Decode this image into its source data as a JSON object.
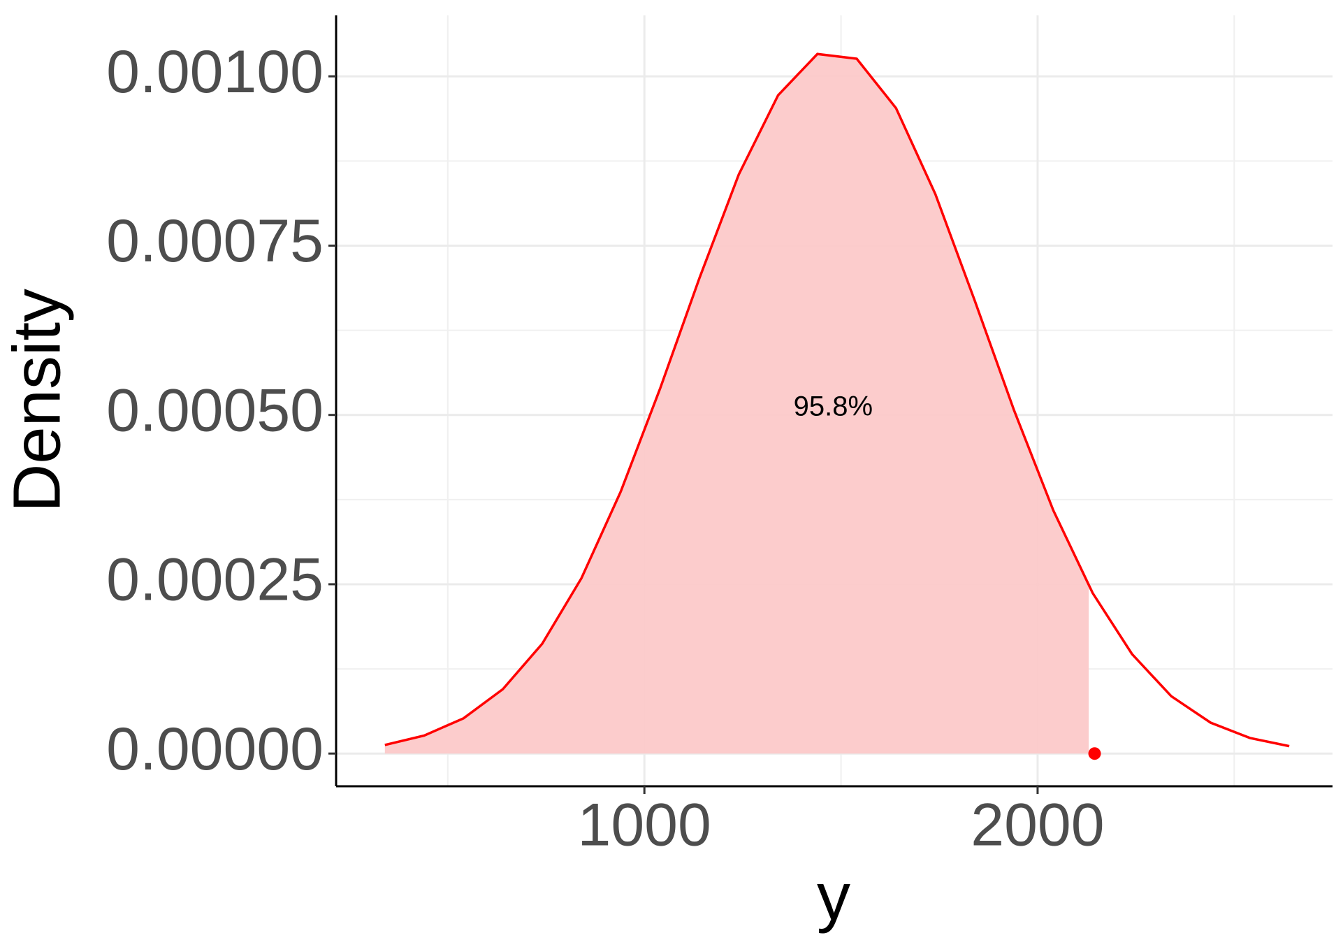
{
  "chart_data": {
    "type": "area_line",
    "x_label": "y",
    "y_label": "Density",
    "xlim": [
      216,
      2750
    ],
    "ylim": [
      -4.83e-05,
      0.00109
    ],
    "xticks": [
      1000,
      2000
    ],
    "x_minor_ticks": [
      500,
      1500,
      2500
    ],
    "yticks": [
      {
        "value": 0,
        "label": "0.00000"
      },
      {
        "value": 0.00025,
        "label": "0.00025"
      },
      {
        "value": 0.0005,
        "label": "0.00050"
      },
      {
        "value": 0.00075,
        "label": "0.00075"
      },
      {
        "value": 0.001,
        "label": "0.00100"
      }
    ],
    "y_minor_ticks": [
      0.000125,
      0.000375,
      0.000625,
      0.000875
    ],
    "grid": true,
    "area": {
      "color": "#fcc9c9",
      "x": [
        340,
        440,
        540,
        640,
        740,
        840,
        940,
        1040,
        1140,
        1240,
        1340,
        1440,
        1540,
        1640,
        1740,
        1840,
        1940,
        2040,
        2130
      ],
      "values": [
        1.27e-05,
        2.66e-05,
        5.2e-05,
        9.5e-05,
        0.000162,
        0.000259,
        0.000387,
        0.000539,
        0.000702,
        0.000855,
        0.000972,
        0.001033,
        0.001026,
        0.000953,
        0.000826,
        0.000669,
        0.000507,
        0.000359,
        0.00025
      ]
    },
    "curve": {
      "color": "#ff0000",
      "x": [
        340,
        440,
        540,
        640,
        740,
        840,
        940,
        1040,
        1140,
        1240,
        1340,
        1440,
        1540,
        1640,
        1740,
        1840,
        1940,
        2040,
        2140,
        2240,
        2340,
        2440,
        2540,
        2640
      ],
      "values": [
        1.27e-05,
        2.66e-05,
        5.2e-05,
        9.5e-05,
        0.000162,
        0.000259,
        0.000387,
        0.000539,
        0.000702,
        0.000855,
        0.000972,
        0.001033,
        0.001026,
        0.000953,
        0.000826,
        0.000669,
        0.000507,
        0.000359,
        0.000237,
        0.000147,
        8.46e-05,
        4.56e-05,
        2.3e-05,
        1.09e-05
      ]
    },
    "point": {
      "x": 2145,
      "y": 0,
      "color": "#ff0000"
    },
    "annotation": {
      "text": "95.8%",
      "x": 1480,
      "y": 0.00051
    }
  }
}
